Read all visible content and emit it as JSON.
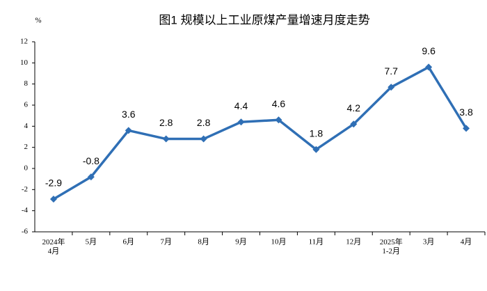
{
  "chart_data": {
    "type": "line",
    "title": "图1  规模以上工业原煤产量增速月度走势",
    "y_label": "%",
    "categories": [
      "2024年\n4月",
      "5月",
      "6月",
      "7月",
      "8月",
      "9月",
      "10月",
      "11月",
      "12月",
      "2025年\n1-2月",
      "3月",
      "4月"
    ],
    "series": [
      {
        "color": "#2f6fb5",
        "values": [
          -2.9,
          -0.8,
          3.6,
          2.8,
          2.8,
          4.4,
          4.6,
          1.8,
          4.2,
          7.7,
          9.6,
          3.8
        ]
      }
    ],
    "ylim": [
      -6,
      12
    ],
    "yticks": [
      -6,
      -4,
      -2,
      0,
      2,
      4,
      6,
      8,
      10,
      12
    ],
    "grid": false
  }
}
